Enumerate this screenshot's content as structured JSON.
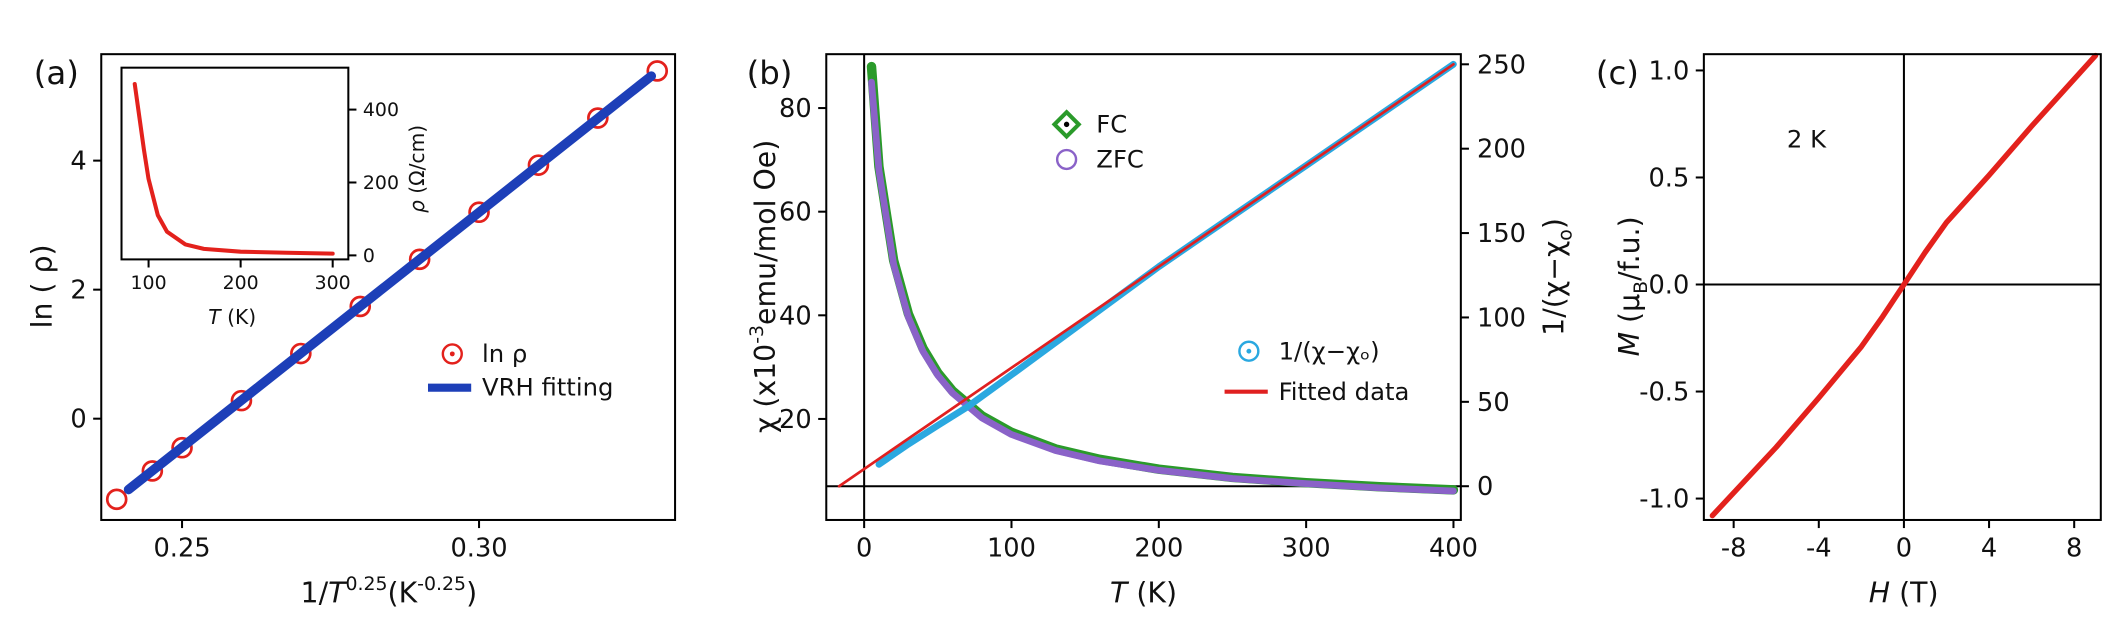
{
  "chart_data": [
    {
      "type": "scatter",
      "panel": "(a)",
      "xlabel": [
        "1/",
        "T",
        "0.25",
        "(K",
        "-0.25",
        ")"
      ],
      "ylabel": "ln ( ρ)",
      "xlim": [
        0.2364,
        0.333
      ],
      "ylim": [
        -1.57,
        5.65
      ],
      "xticks": [
        0.25,
        {
          "value": 0.3,
          "label": "0.30"
        }
      ],
      "yticks": [
        0,
        2,
        4
      ],
      "series": [
        {
          "name": "ln  ρ",
          "color": "#e3211c",
          "style": "points",
          "marker": "circle-dot",
          "x": [
            0.239,
            0.245,
            0.25,
            0.26,
            0.27,
            0.28,
            0.29,
            0.3,
            0.31,
            0.32,
            0.33
          ],
          "values": [
            -1.25,
            -0.81,
            -0.45,
            0.28,
            1.01,
            1.74,
            2.47,
            3.2,
            3.93,
            4.66,
            5.39
          ]
        },
        {
          "name": "VRH fitting",
          "color": "#1d3fb8",
          "style": "line",
          "marker": "thick-line",
          "x": [
            0.241,
            0.329
          ],
          "values": [
            -1.1,
            5.31
          ]
        }
      ]
    },
    {
      "type": "line",
      "xlabel": [
        "T",
        " (K)"
      ],
      "ylabel": [
        "ρ",
        " (Ω/cm)"
      ],
      "yaxis_side": "right",
      "xlim": [
        70.6,
        317
      ],
      "ylim": [
        -11,
        515
      ],
      "xticks": [
        100,
        200,
        300
      ],
      "yticks": [
        0,
        200,
        400
      ],
      "series": [
        {
          "color": "#e3211c",
          "style": "line",
          "x": [
            85,
            90,
            95,
            100,
            110,
            120,
            140,
            160,
            200,
            250,
            300
          ],
          "values": [
            470,
            380,
            290,
            210,
            110,
            65,
            30,
            18,
            10,
            7,
            5
          ]
        }
      ]
    },
    {
      "type": "line",
      "panel": "(b)",
      "xlabel": [
        "T",
        " (K)"
      ],
      "ylabel": [
        "χ (x10",
        "-3",
        "emu/mol Oe)"
      ],
      "y2label": [
        "1/(χ−χ",
        "o",
        ")"
      ],
      "xlim": [
        -25.7,
        405
      ],
      "ylim": [
        0.5,
        90.4
      ],
      "y2lim": [
        -20,
        256
      ],
      "xticks": [
        0,
        100,
        200,
        300,
        400
      ],
      "yticks": [
        20,
        40,
        60,
        80
      ],
      "y2ticks": [
        0,
        50,
        100,
        150,
        200,
        250
      ],
      "zero_lines": true,
      "series": [
        {
          "name": "FC",
          "color": "#2a9a2a",
          "style": "line",
          "width": 7,
          "marker": "diamond-dot",
          "x": [
            5,
            10,
            20,
            30,
            40,
            50,
            60,
            80,
            100,
            130,
            160,
            200,
            250,
            300,
            350,
            400
          ],
          "values": [
            88,
            68.7,
            50.6,
            40.3,
            33.6,
            28.9,
            25.4,
            20.6,
            17.4,
            14.2,
            12.2,
            10.3,
            8.7,
            7.7,
            6.9,
            6.3
          ]
        },
        {
          "name": "ZFC",
          "color": "#8a62c8",
          "style": "line",
          "width": 5,
          "marker": "circle",
          "x": [
            5,
            10,
            20,
            30,
            40,
            50,
            60,
            80,
            100,
            130,
            160,
            200,
            250,
            300,
            350,
            400
          ],
          "values": [
            85,
            68,
            49.8,
            39.6,
            33,
            28.4,
            25,
            20.2,
            17,
            13.9,
            11.9,
            10.1,
            8.5,
            7.5,
            6.7,
            6.1
          ]
        },
        {
          "name": "1/(χ−χₒ)",
          "color": "#2aa8e0",
          "style": "line",
          "width": 5,
          "marker": "circle-dot",
          "axis": "y2",
          "x": [
            10,
            30,
            50,
            70,
            100,
            150,
            200,
            250,
            300,
            350,
            400
          ],
          "values": [
            13,
            25,
            36,
            47,
            66,
            98,
            130.1,
            160.1,
            190,
            220,
            250
          ]
        },
        {
          "name": "Fitted data",
          "color": "#e02020",
          "style": "line",
          "width": 2,
          "marker": "line",
          "axis": "y2",
          "x": [
            -17,
            400
          ],
          "values": [
            0,
            250
          ]
        }
      ]
    },
    {
      "type": "line",
      "panel": "(c)",
      "xlabel": [
        "H",
        " (T)"
      ],
      "ylabel": [
        "M",
        " (μ",
        "B",
        "/f.u.)"
      ],
      "annotation": "2 K",
      "xlim": [
        -9.4,
        9.25
      ],
      "ylim": [
        -1.1,
        1.076
      ],
      "xticks": [
        -8,
        -4,
        0,
        4,
        8
      ],
      "yticks": [
        {
          "value": -1,
          "label": "-1.0"
        },
        {
          "value": -0.5,
          "label": "-0.5"
        },
        {
          "value": 0,
          "label": "0.0"
        },
        {
          "value": 0.5,
          "label": "0.5"
        },
        {
          "value": 1,
          "label": "1.0"
        }
      ],
      "zero_lines": true,
      "series": [
        {
          "color": "#e3211c",
          "style": "line",
          "width": 4,
          "x": [
            -9,
            -6,
            -4,
            -2,
            -1,
            0,
            1,
            2,
            4,
            6,
            9
          ],
          "values": [
            -1.08,
            -0.76,
            -0.53,
            -0.29,
            -0.15,
            0,
            0.15,
            0.29,
            0.51,
            0.74,
            1.07
          ]
        }
      ]
    }
  ]
}
